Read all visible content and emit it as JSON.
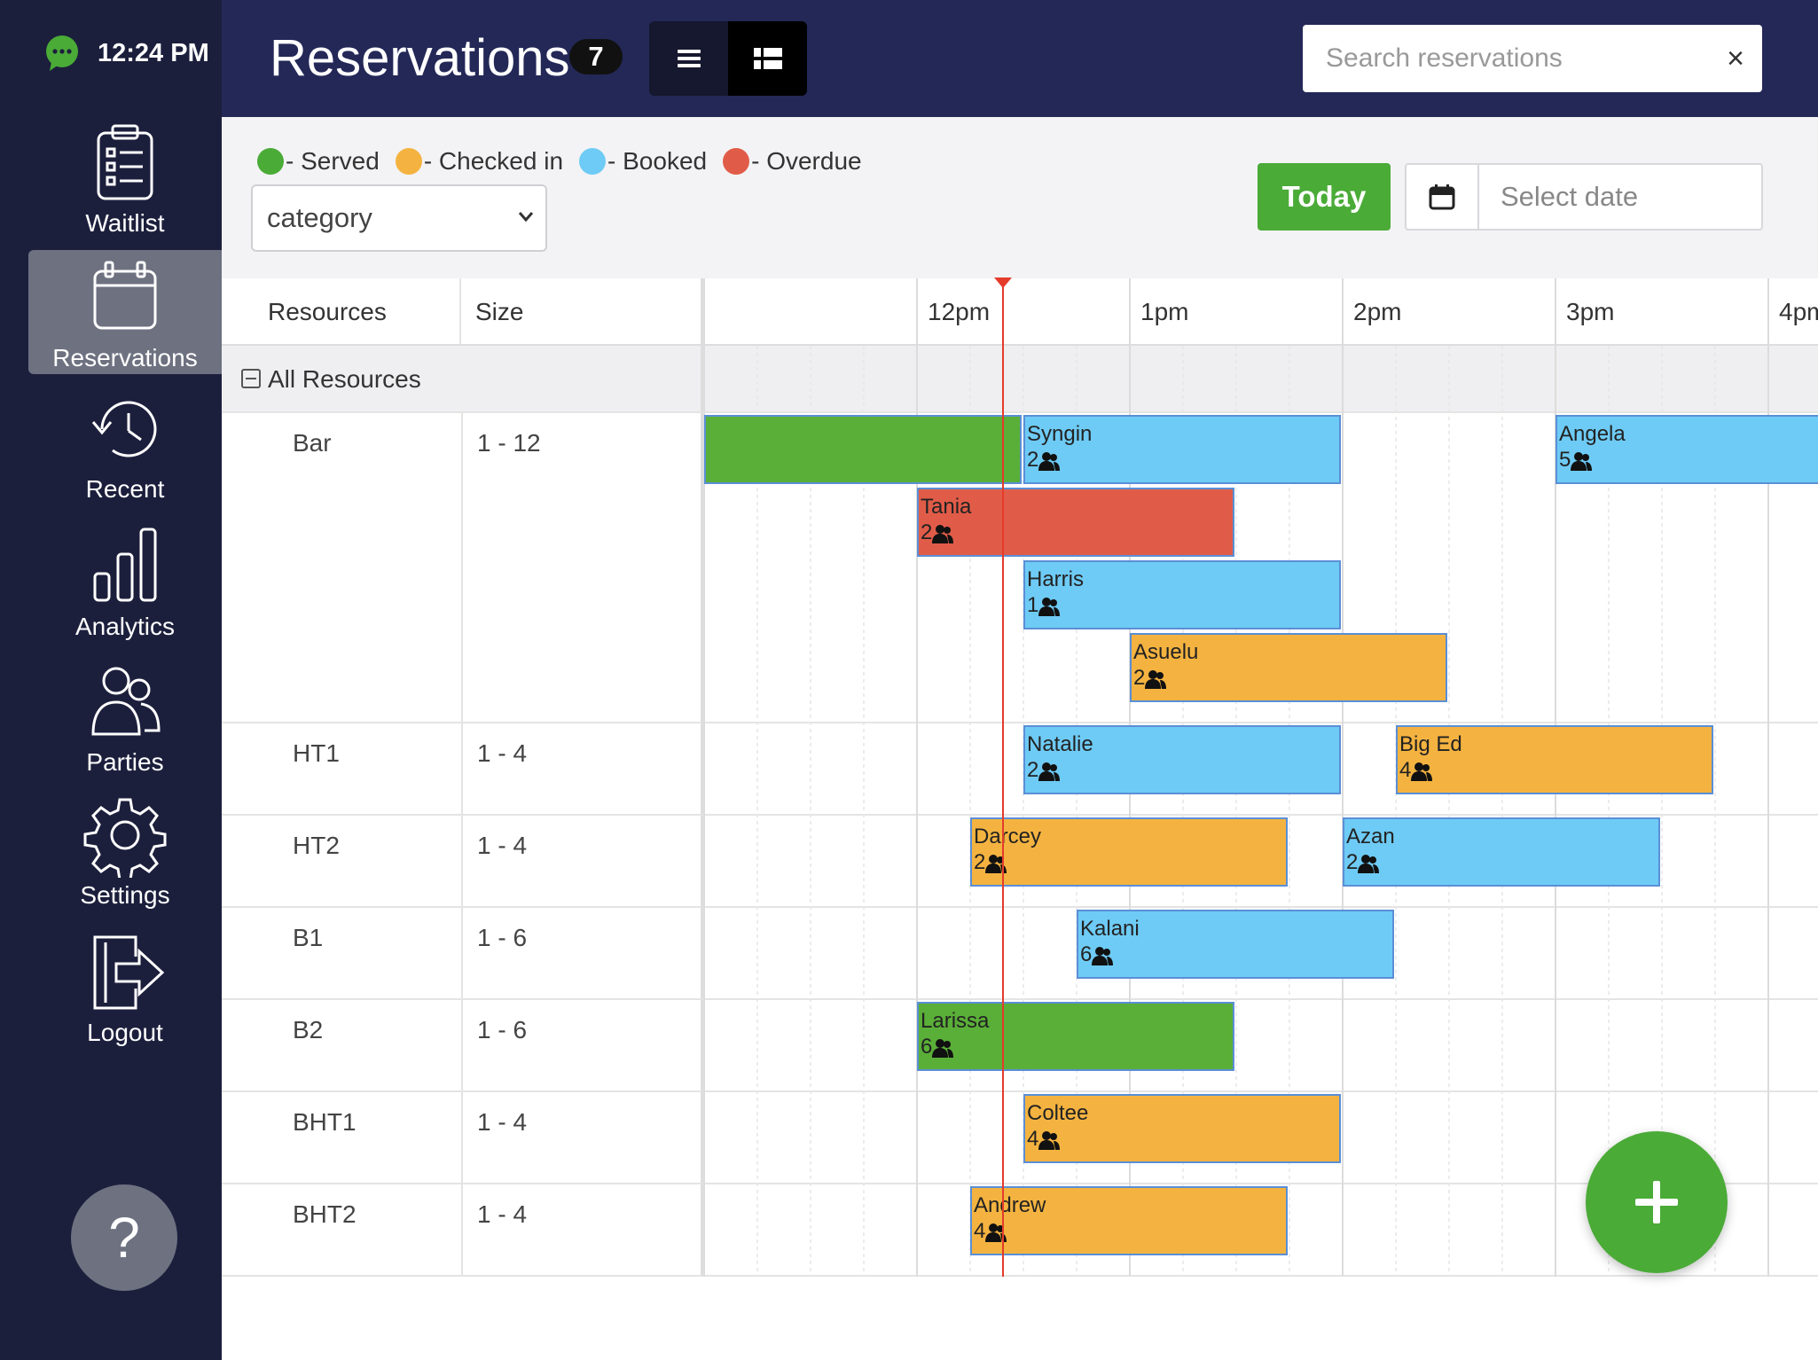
{
  "sidebar": {
    "clock": "12:24 PM",
    "items": [
      {
        "label": "Waitlist",
        "icon": "clipboard-icon",
        "active": false
      },
      {
        "label": "Reservations",
        "icon": "calendar-icon",
        "active": true
      },
      {
        "label": "Recent",
        "icon": "history-icon",
        "active": false
      },
      {
        "label": "Analytics",
        "icon": "bar-chart-icon",
        "active": false
      },
      {
        "label": "Parties",
        "icon": "people-icon",
        "active": false
      },
      {
        "label": "Settings",
        "icon": "gear-icon",
        "active": false
      },
      {
        "label": "Logout",
        "icon": "logout-icon",
        "active": false
      }
    ],
    "help": "?"
  },
  "header": {
    "title": "Reservations",
    "count": "7",
    "search_placeholder": "Search reservations",
    "clear": "×"
  },
  "toolbar": {
    "legend": [
      {
        "label": "- Served",
        "color": "#4aab37"
      },
      {
        "label": "- Checked in",
        "color": "#f4b340"
      },
      {
        "label": "- Booked",
        "color": "#6ecbf5"
      },
      {
        "label": "- Overdue",
        "color": "#e15c48"
      }
    ],
    "category_select": "category",
    "today_label": "Today",
    "date_placeholder": "Select date"
  },
  "scheduler": {
    "resources_header": "Resources",
    "size_header": "Size",
    "all_resources": "All Resources",
    "hours": [
      "12pm",
      "1pm",
      "2pm",
      "3pm",
      "4pm"
    ],
    "now_time": "12:24 PM",
    "rows": [
      {
        "name": "Bar",
        "size": "1 - 12"
      },
      {
        "name": "HT1",
        "size": "1 - 4"
      },
      {
        "name": "HT2",
        "size": "1 - 4"
      },
      {
        "name": "B1",
        "size": "1 - 6"
      },
      {
        "name": "B2",
        "size": "1 - 6"
      },
      {
        "name": "BHT1",
        "size": "1 - 4"
      },
      {
        "name": "BHT2",
        "size": "1 - 4"
      }
    ],
    "reservations": [
      {
        "name": "",
        "party": "",
        "status": "served",
        "resource": "Bar",
        "start": "10:50",
        "end": "12:30"
      },
      {
        "name": "Syngin",
        "party": "2",
        "status": "booked",
        "resource": "Bar",
        "start": "12:30",
        "end": "14:00"
      },
      {
        "name": "Angela",
        "party": "5",
        "status": "booked",
        "resource": "Bar",
        "start": "15:00",
        "end": "16:30"
      },
      {
        "name": "Tania",
        "party": "2",
        "status": "overdue",
        "resource": "Bar",
        "start": "12:00",
        "end": "13:30"
      },
      {
        "name": "Harris",
        "party": "1",
        "status": "booked",
        "resource": "Bar",
        "start": "12:30",
        "end": "14:00"
      },
      {
        "name": "Asuelu",
        "party": "2",
        "status": "checked_in",
        "resource": "Bar",
        "start": "13:00",
        "end": "14:30"
      },
      {
        "name": "Natalie",
        "party": "2",
        "status": "booked",
        "resource": "HT1",
        "start": "12:30",
        "end": "14:00"
      },
      {
        "name": "Big Ed",
        "party": "4",
        "status": "checked_in",
        "resource": "HT1",
        "start": "14:15",
        "end": "15:45"
      },
      {
        "name": "Darcey",
        "party": "2",
        "status": "checked_in",
        "resource": "HT2",
        "start": "12:15",
        "end": "13:45"
      },
      {
        "name": "Azan",
        "party": "2",
        "status": "booked",
        "resource": "HT2",
        "start": "14:00",
        "end": "15:30"
      },
      {
        "name": "Kalani",
        "party": "6",
        "status": "booked",
        "resource": "B1",
        "start": "12:45",
        "end": "14:15"
      },
      {
        "name": "Larissa",
        "party": "6",
        "status": "served",
        "resource": "B2",
        "start": "12:00",
        "end": "13:30"
      },
      {
        "name": "Coltee",
        "party": "4",
        "status": "checked_in",
        "resource": "BHT1",
        "start": "12:30",
        "end": "14:00"
      },
      {
        "name": "Andrew",
        "party": "4",
        "status": "checked_in",
        "resource": "BHT2",
        "start": "12:15",
        "end": "13:45"
      }
    ]
  },
  "fab_label": "+"
}
